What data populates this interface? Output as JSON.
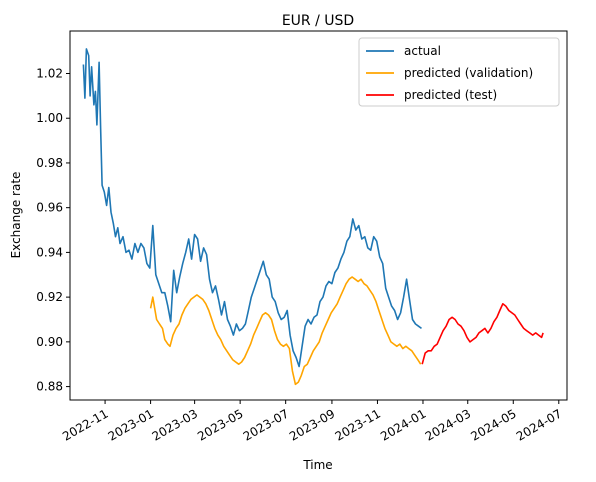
{
  "chart_data": {
    "type": "line",
    "title": "EUR / USD",
    "xlabel": "Time",
    "ylabel": "Exchange rate",
    "xlim": [
      "2022-09-15",
      "2024-07-12"
    ],
    "ylim": [
      0.874,
      1.039
    ],
    "x_ticks": [
      "2022-11",
      "2023-01",
      "2023-03",
      "2023-05",
      "2023-07",
      "2023-09",
      "2023-11",
      "2024-01",
      "2024-03",
      "2024-05",
      "2024-07"
    ],
    "x_tick_dates": [
      "2022-11-01",
      "2023-01-01",
      "2023-03-01",
      "2023-05-01",
      "2023-07-01",
      "2023-09-01",
      "2023-11-01",
      "2024-01-01",
      "2024-03-01",
      "2024-05-01",
      "2024-07-01"
    ],
    "y_ticks": [
      "0.88",
      "0.90",
      "0.92",
      "0.94",
      "0.96",
      "0.98",
      "1.00",
      "1.02"
    ],
    "y_tick_values": [
      0.88,
      0.9,
      0.92,
      0.94,
      0.96,
      0.98,
      1.0,
      1.02
    ],
    "grid": false,
    "legend_position": "top-right",
    "series": [
      {
        "name": "actual",
        "color": "#1f77b4",
        "points": [
          [
            "2022-10-03",
            1.024
          ],
          [
            "2022-10-05",
            1.009
          ],
          [
            "2022-10-07",
            1.031
          ],
          [
            "2022-10-10",
            1.028
          ],
          [
            "2022-10-12",
            1.01
          ],
          [
            "2022-10-14",
            1.023
          ],
          [
            "2022-10-17",
            1.006
          ],
          [
            "2022-10-19",
            1.012
          ],
          [
            "2022-10-21",
            0.997
          ],
          [
            "2022-10-24",
            1.025
          ],
          [
            "2022-10-26",
            0.996
          ],
          [
            "2022-10-28",
            0.97
          ],
          [
            "2022-10-31",
            0.967
          ],
          [
            "2022-11-03",
            0.961
          ],
          [
            "2022-11-06",
            0.969
          ],
          [
            "2022-11-09",
            0.958
          ],
          [
            "2022-11-12",
            0.953
          ],
          [
            "2022-11-15",
            0.947
          ],
          [
            "2022-11-18",
            0.951
          ],
          [
            "2022-11-21",
            0.944
          ],
          [
            "2022-11-25",
            0.947
          ],
          [
            "2022-11-29",
            0.94
          ],
          [
            "2022-12-03",
            0.941
          ],
          [
            "2022-12-07",
            0.937
          ],
          [
            "2022-12-11",
            0.944
          ],
          [
            "2022-12-15",
            0.94
          ],
          [
            "2022-12-19",
            0.944
          ],
          [
            "2022-12-23",
            0.942
          ],
          [
            "2022-12-27",
            0.935
          ],
          [
            "2022-12-31",
            0.933
          ],
          [
            "2023-01-04",
            0.952
          ],
          [
            "2023-01-08",
            0.93
          ],
          [
            "2023-01-12",
            0.926
          ],
          [
            "2023-01-16",
            0.922
          ],
          [
            "2023-01-20",
            0.922
          ],
          [
            "2023-01-24",
            0.916
          ],
          [
            "2023-01-28",
            0.909
          ],
          [
            "2023-02-01",
            0.932
          ],
          [
            "2023-02-05",
            0.922
          ],
          [
            "2023-02-09",
            0.929
          ],
          [
            "2023-02-13",
            0.935
          ],
          [
            "2023-02-17",
            0.94
          ],
          [
            "2023-02-21",
            0.946
          ],
          [
            "2023-02-25",
            0.937
          ],
          [
            "2023-03-01",
            0.948
          ],
          [
            "2023-03-05",
            0.946
          ],
          [
            "2023-03-09",
            0.936
          ],
          [
            "2023-03-13",
            0.942
          ],
          [
            "2023-03-17",
            0.939
          ],
          [
            "2023-03-21",
            0.928
          ],
          [
            "2023-03-25",
            0.922
          ],
          [
            "2023-03-29",
            0.925
          ],
          [
            "2023-04-02",
            0.919
          ],
          [
            "2023-04-06",
            0.912
          ],
          [
            "2023-04-10",
            0.918
          ],
          [
            "2023-04-14",
            0.91
          ],
          [
            "2023-04-18",
            0.907
          ],
          [
            "2023-04-22",
            0.903
          ],
          [
            "2023-04-26",
            0.908
          ],
          [
            "2023-04-30",
            0.905
          ],
          [
            "2023-05-04",
            0.906
          ],
          [
            "2023-05-08",
            0.908
          ],
          [
            "2023-05-12",
            0.914
          ],
          [
            "2023-05-16",
            0.92
          ],
          [
            "2023-05-20",
            0.924
          ],
          [
            "2023-05-24",
            0.928
          ],
          [
            "2023-05-28",
            0.932
          ],
          [
            "2023-06-01",
            0.936
          ],
          [
            "2023-06-05",
            0.93
          ],
          [
            "2023-06-09",
            0.928
          ],
          [
            "2023-06-13",
            0.92
          ],
          [
            "2023-06-17",
            0.918
          ],
          [
            "2023-06-21",
            0.913
          ],
          [
            "2023-06-25",
            0.91
          ],
          [
            "2023-06-29",
            0.911
          ],
          [
            "2023-07-03",
            0.914
          ],
          [
            "2023-07-07",
            0.903
          ],
          [
            "2023-07-11",
            0.896
          ],
          [
            "2023-07-15",
            0.893
          ],
          [
            "2023-07-19",
            0.889
          ],
          [
            "2023-07-23",
            0.898
          ],
          [
            "2023-07-27",
            0.907
          ],
          [
            "2023-07-31",
            0.91
          ],
          [
            "2023-08-04",
            0.908
          ],
          [
            "2023-08-08",
            0.911
          ],
          [
            "2023-08-12",
            0.912
          ],
          [
            "2023-08-16",
            0.918
          ],
          [
            "2023-08-20",
            0.92
          ],
          [
            "2023-08-24",
            0.925
          ],
          [
            "2023-08-28",
            0.927
          ],
          [
            "2023-09-01",
            0.926
          ],
          [
            "2023-09-05",
            0.931
          ],
          [
            "2023-09-09",
            0.933
          ],
          [
            "2023-09-13",
            0.937
          ],
          [
            "2023-09-17",
            0.94
          ],
          [
            "2023-09-21",
            0.945
          ],
          [
            "2023-09-25",
            0.947
          ],
          [
            "2023-09-29",
            0.955
          ],
          [
            "2023-10-03",
            0.95
          ],
          [
            "2023-10-07",
            0.952
          ],
          [
            "2023-10-11",
            0.946
          ],
          [
            "2023-10-15",
            0.947
          ],
          [
            "2023-10-19",
            0.942
          ],
          [
            "2023-10-23",
            0.941
          ],
          [
            "2023-10-27",
            0.947
          ],
          [
            "2023-10-31",
            0.945
          ],
          [
            "2023-11-04",
            0.938
          ],
          [
            "2023-11-08",
            0.935
          ],
          [
            "2023-11-12",
            0.924
          ],
          [
            "2023-11-16",
            0.92
          ],
          [
            "2023-11-20",
            0.916
          ],
          [
            "2023-11-24",
            0.914
          ],
          [
            "2023-11-28",
            0.91
          ],
          [
            "2023-12-02",
            0.913
          ],
          [
            "2023-12-06",
            0.92
          ],
          [
            "2023-12-10",
            0.928
          ],
          [
            "2023-12-14",
            0.919
          ],
          [
            "2023-12-18",
            0.91
          ],
          [
            "2023-12-22",
            0.908
          ],
          [
            "2023-12-26",
            0.907
          ],
          [
            "2023-12-30",
            0.906
          ]
        ]
      },
      {
        "name": "predicted (validation)",
        "color": "#ffa500",
        "points": [
          [
            "2023-01-01",
            0.915
          ],
          [
            "2023-01-04",
            0.92
          ],
          [
            "2023-01-06",
            0.916
          ],
          [
            "2023-01-09",
            0.91
          ],
          [
            "2023-01-13",
            0.908
          ],
          [
            "2023-01-17",
            0.906
          ],
          [
            "2023-01-20",
            0.901
          ],
          [
            "2023-01-24",
            0.899
          ],
          [
            "2023-01-27",
            0.898
          ],
          [
            "2023-01-31",
            0.903
          ],
          [
            "2023-02-04",
            0.906
          ],
          [
            "2023-02-08",
            0.908
          ],
          [
            "2023-02-12",
            0.912
          ],
          [
            "2023-02-16",
            0.915
          ],
          [
            "2023-02-20",
            0.917
          ],
          [
            "2023-02-24",
            0.919
          ],
          [
            "2023-02-28",
            0.92
          ],
          [
            "2023-03-04",
            0.921
          ],
          [
            "2023-03-08",
            0.92
          ],
          [
            "2023-03-12",
            0.919
          ],
          [
            "2023-03-16",
            0.917
          ],
          [
            "2023-03-20",
            0.914
          ],
          [
            "2023-03-24",
            0.91
          ],
          [
            "2023-03-28",
            0.906
          ],
          [
            "2023-04-01",
            0.903
          ],
          [
            "2023-04-05",
            0.901
          ],
          [
            "2023-04-09",
            0.898
          ],
          [
            "2023-04-13",
            0.896
          ],
          [
            "2023-04-17",
            0.894
          ],
          [
            "2023-04-21",
            0.892
          ],
          [
            "2023-04-25",
            0.891
          ],
          [
            "2023-04-29",
            0.89
          ],
          [
            "2023-05-03",
            0.891
          ],
          [
            "2023-05-07",
            0.893
          ],
          [
            "2023-05-11",
            0.896
          ],
          [
            "2023-05-15",
            0.899
          ],
          [
            "2023-05-19",
            0.903
          ],
          [
            "2023-05-23",
            0.906
          ],
          [
            "2023-05-27",
            0.909
          ],
          [
            "2023-05-31",
            0.912
          ],
          [
            "2023-06-04",
            0.913
          ],
          [
            "2023-06-08",
            0.912
          ],
          [
            "2023-06-12",
            0.91
          ],
          [
            "2023-06-16",
            0.905
          ],
          [
            "2023-06-20",
            0.901
          ],
          [
            "2023-06-24",
            0.899
          ],
          [
            "2023-06-28",
            0.898
          ],
          [
            "2023-07-02",
            0.899
          ],
          [
            "2023-07-06",
            0.897
          ],
          [
            "2023-07-10",
            0.887
          ],
          [
            "2023-07-14",
            0.881
          ],
          [
            "2023-07-18",
            0.882
          ],
          [
            "2023-07-22",
            0.885
          ],
          [
            "2023-07-26",
            0.889
          ],
          [
            "2023-07-30",
            0.89
          ],
          [
            "2023-08-03",
            0.893
          ],
          [
            "2023-08-07",
            0.896
          ],
          [
            "2023-08-11",
            0.898
          ],
          [
            "2023-08-15",
            0.9
          ],
          [
            "2023-08-19",
            0.904
          ],
          [
            "2023-08-23",
            0.907
          ],
          [
            "2023-08-27",
            0.91
          ],
          [
            "2023-08-31",
            0.913
          ],
          [
            "2023-09-04",
            0.915
          ],
          [
            "2023-09-08",
            0.917
          ],
          [
            "2023-09-12",
            0.92
          ],
          [
            "2023-09-16",
            0.923
          ],
          [
            "2023-09-20",
            0.926
          ],
          [
            "2023-09-24",
            0.928
          ],
          [
            "2023-09-28",
            0.929
          ],
          [
            "2023-10-02",
            0.928
          ],
          [
            "2023-10-06",
            0.927
          ],
          [
            "2023-10-10",
            0.928
          ],
          [
            "2023-10-14",
            0.926
          ],
          [
            "2023-10-18",
            0.925
          ],
          [
            "2023-10-22",
            0.923
          ],
          [
            "2023-10-26",
            0.921
          ],
          [
            "2023-10-30",
            0.918
          ],
          [
            "2023-11-03",
            0.914
          ],
          [
            "2023-11-07",
            0.91
          ],
          [
            "2023-11-11",
            0.906
          ],
          [
            "2023-11-15",
            0.903
          ],
          [
            "2023-11-19",
            0.9
          ],
          [
            "2023-11-23",
            0.899
          ],
          [
            "2023-11-27",
            0.898
          ],
          [
            "2023-12-01",
            0.899
          ],
          [
            "2023-12-05",
            0.897
          ],
          [
            "2023-12-09",
            0.898
          ],
          [
            "2023-12-13",
            0.897
          ],
          [
            "2023-12-17",
            0.896
          ],
          [
            "2023-12-21",
            0.894
          ],
          [
            "2023-12-25",
            0.892
          ],
          [
            "2023-12-29",
            0.89
          ]
        ]
      },
      {
        "name": "predicted (test)",
        "color": "#ff0000",
        "points": [
          [
            "2023-12-31",
            0.89
          ],
          [
            "2024-01-04",
            0.895
          ],
          [
            "2024-01-08",
            0.896
          ],
          [
            "2024-01-12",
            0.896
          ],
          [
            "2024-01-16",
            0.898
          ],
          [
            "2024-01-20",
            0.899
          ],
          [
            "2024-01-24",
            0.902
          ],
          [
            "2024-01-28",
            0.905
          ],
          [
            "2024-02-01",
            0.907
          ],
          [
            "2024-02-05",
            0.91
          ],
          [
            "2024-02-09",
            0.911
          ],
          [
            "2024-02-13",
            0.91
          ],
          [
            "2024-02-17",
            0.908
          ],
          [
            "2024-02-21",
            0.907
          ],
          [
            "2024-02-25",
            0.905
          ],
          [
            "2024-02-29",
            0.902
          ],
          [
            "2024-03-04",
            0.9
          ],
          [
            "2024-03-08",
            0.901
          ],
          [
            "2024-03-12",
            0.902
          ],
          [
            "2024-03-16",
            0.904
          ],
          [
            "2024-03-20",
            0.905
          ],
          [
            "2024-03-24",
            0.906
          ],
          [
            "2024-03-28",
            0.904
          ],
          [
            "2024-04-01",
            0.906
          ],
          [
            "2024-04-05",
            0.909
          ],
          [
            "2024-04-09",
            0.911
          ],
          [
            "2024-04-13",
            0.914
          ],
          [
            "2024-04-17",
            0.917
          ],
          [
            "2024-04-21",
            0.916
          ],
          [
            "2024-04-25",
            0.914
          ],
          [
            "2024-04-29",
            0.913
          ],
          [
            "2024-05-03",
            0.912
          ],
          [
            "2024-05-07",
            0.91
          ],
          [
            "2024-05-11",
            0.908
          ],
          [
            "2024-05-15",
            0.906
          ],
          [
            "2024-05-19",
            0.905
          ],
          [
            "2024-05-23",
            0.904
          ],
          [
            "2024-05-27",
            0.903
          ],
          [
            "2024-05-31",
            0.904
          ],
          [
            "2024-06-04",
            0.903
          ],
          [
            "2024-06-08",
            0.902
          ],
          [
            "2024-06-10",
            0.904
          ]
        ]
      }
    ]
  }
}
